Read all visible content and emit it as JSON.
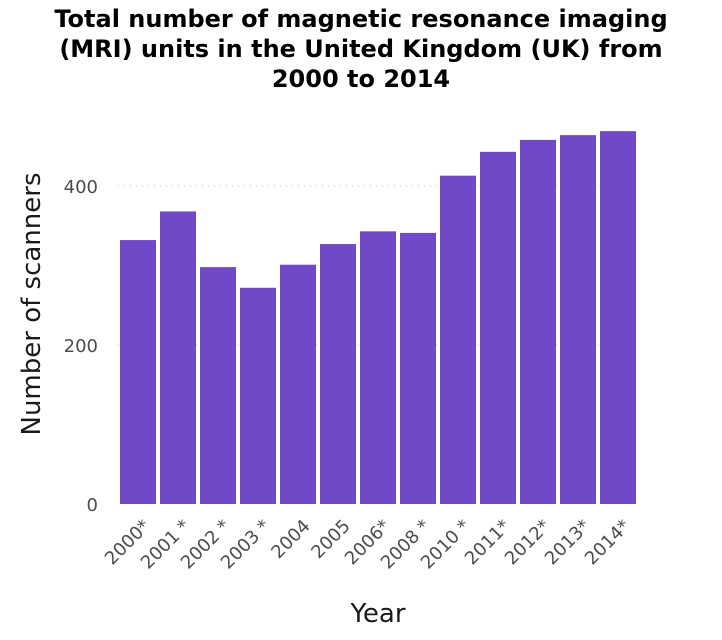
{
  "chart_data": {
    "type": "bar",
    "title": "Total number of magnetic resonance imaging\n(MRI) units in the United Kingdom (UK) from\n2000 to 2014",
    "xlabel": "Year",
    "ylabel": "Number of scanners",
    "categories": [
      "2000*",
      "2001 *",
      "2002 *",
      "2003 *",
      "2004",
      "2005",
      "2006*",
      "2008 *",
      "2010 *",
      "2011*",
      "2012*",
      "2013*",
      "2014*"
    ],
    "values": [
      332,
      368,
      298,
      272,
      301,
      327,
      343,
      341,
      413,
      443,
      458,
      464,
      469
    ],
    "yticks": [
      0,
      200,
      400
    ],
    "ylim": [
      0,
      478
    ],
    "bar_color": "#7149c6",
    "grid": "dotted horizontal at 400"
  }
}
